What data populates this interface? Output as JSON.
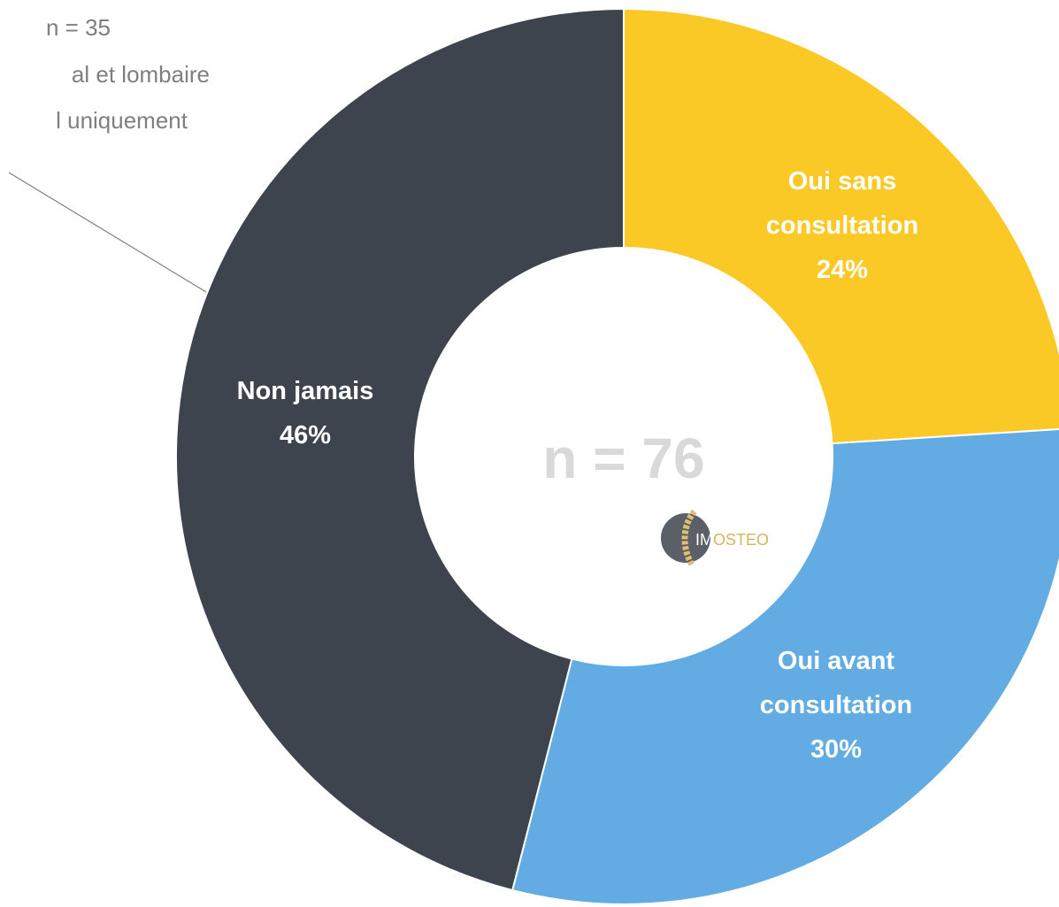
{
  "chart_data": {
    "type": "donut",
    "categories": [
      "Oui sans consultation",
      "Oui avant consultation",
      "Non jamais"
    ],
    "values": [
      24,
      30,
      46
    ],
    "value_labels": [
      "24%",
      "30%",
      "46%"
    ],
    "colors": [
      "#FBC926",
      "#62ACE3",
      "#3E444D"
    ],
    "center_label": "n = 76",
    "logo": {
      "left": "IM",
      "right": "OSTEO"
    },
    "annotation": [
      "n = 35",
      "al et lombaire",
      "l uniquement"
    ]
  }
}
